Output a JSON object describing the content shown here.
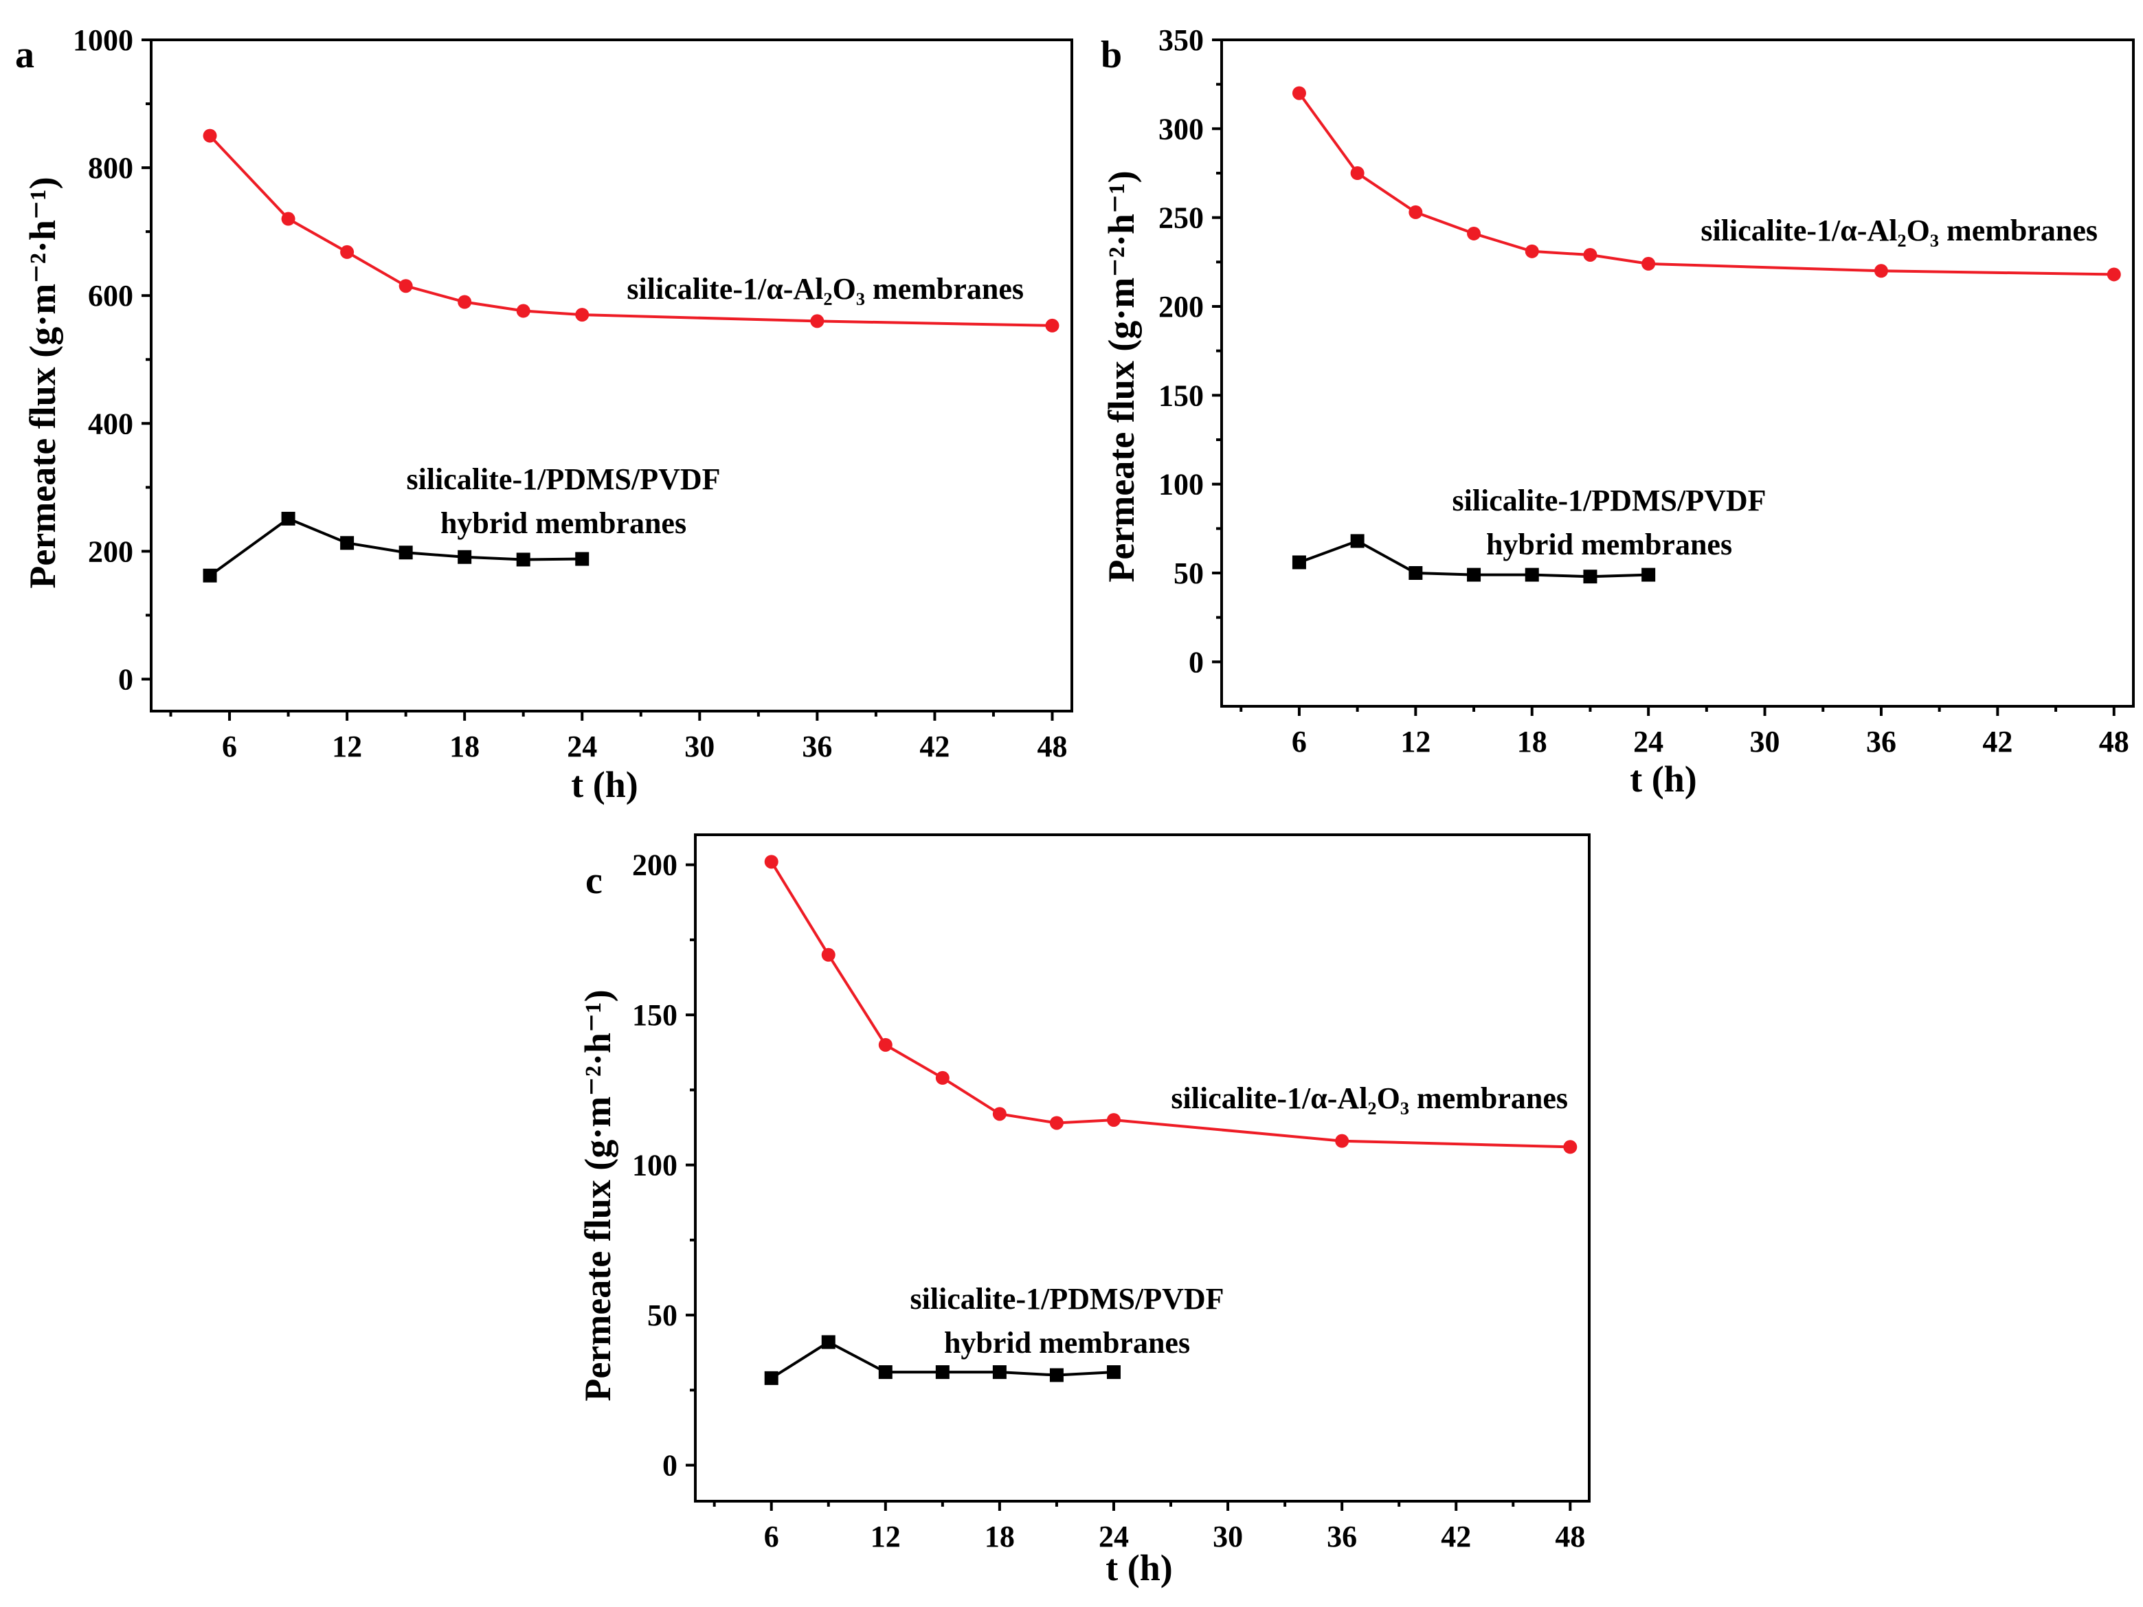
{
  "chart_data": [
    {
      "type": "line",
      "panel_label": "a",
      "xlabel": "t (h)",
      "ylabel": "Permeate flux (g·m⁻²·h⁻¹)",
      "xticks": [
        6,
        12,
        18,
        24,
        30,
        36,
        42,
        48
      ],
      "yticks": [
        0,
        200,
        400,
        600,
        800,
        1000
      ],
      "xlim": [
        2,
        49
      ],
      "ylim": [
        -50,
        1000
      ],
      "series": [
        {
          "name": "silicalite-1/α-Al₂O₃ membranes",
          "color": "#ee1c25",
          "marker": "circle",
          "label_lines": [
            "silicalite-1/α-Al₂O₃ membranes"
          ],
          "x": [
            5,
            9,
            12,
            15,
            18,
            21,
            24,
            36,
            48
          ],
          "values": [
            850,
            720,
            668,
            615,
            590,
            576,
            570,
            560,
            553
          ]
        },
        {
          "name": "silicalite-1/PDMS/PVDF hybrid membranes",
          "color": "#000000",
          "marker": "square",
          "label_lines": [
            "silicalite-1/PDMS/PVDF",
            "hybrid membranes"
          ],
          "x": [
            5,
            9,
            12,
            15,
            18,
            21,
            24
          ],
          "values": [
            162,
            251,
            213,
            198,
            191,
            187,
            188
          ]
        }
      ]
    },
    {
      "type": "line",
      "panel_label": "b",
      "xlabel": "t (h)",
      "ylabel": "Permeate flux (g·m⁻²·h⁻¹)",
      "xticks": [
        6,
        12,
        18,
        24,
        30,
        36,
        42,
        48
      ],
      "yticks": [
        0,
        50,
        100,
        150,
        200,
        250,
        300,
        350
      ],
      "xlim": [
        2,
        49
      ],
      "ylim": [
        -25,
        350
      ],
      "series": [
        {
          "name": "silicalite-1/α-Al₂O₃ membranes",
          "color": "#ee1c25",
          "marker": "circle",
          "label_lines": [
            "silicalite-1/α-Al₂O₃ membranes"
          ],
          "x": [
            6,
            9,
            12,
            15,
            18,
            21,
            24,
            36,
            48
          ],
          "values": [
            320,
            275,
            253,
            241,
            231,
            229,
            224,
            220,
            218
          ]
        },
        {
          "name": "silicalite-1/PDMS/PVDF hybrid membranes",
          "color": "#000000",
          "marker": "square",
          "label_lines": [
            "silicalite-1/PDMS/PVDF",
            "hybrid membranes"
          ],
          "x": [
            6,
            9,
            12,
            15,
            18,
            21,
            24
          ],
          "values": [
            56,
            68,
            50,
            49,
            49,
            48,
            49
          ]
        }
      ]
    },
    {
      "type": "line",
      "panel_label": "c",
      "xlabel": "t (h)",
      "ylabel": "Permeate flux (g·m⁻²·h⁻¹)",
      "xticks": [
        6,
        12,
        18,
        24,
        30,
        36,
        42,
        48
      ],
      "yticks": [
        0,
        50,
        100,
        150,
        200
      ],
      "xlim": [
        2,
        49
      ],
      "ylim": [
        -12,
        210
      ],
      "series": [
        {
          "name": "silicalite-1/α-Al₂O₃ membranes",
          "color": "#ee1c25",
          "marker": "circle",
          "label_lines": [
            "silicalite-1/α-Al₂O₃ membranes"
          ],
          "x": [
            6,
            9,
            12,
            15,
            18,
            21,
            24,
            36,
            48
          ],
          "values": [
            201,
            170,
            140,
            129,
            117,
            114,
            115,
            108,
            106
          ]
        },
        {
          "name": "silicalite-1/PDMS/PVDF hybrid membranes",
          "color": "#000000",
          "marker": "square",
          "label_lines": [
            "silicalite-1/PDMS/PVDF",
            "hybrid membranes"
          ],
          "x": [
            6,
            9,
            12,
            15,
            18,
            21,
            24
          ],
          "values": [
            29,
            41,
            31,
            31,
            31,
            30,
            31
          ]
        }
      ]
    }
  ]
}
